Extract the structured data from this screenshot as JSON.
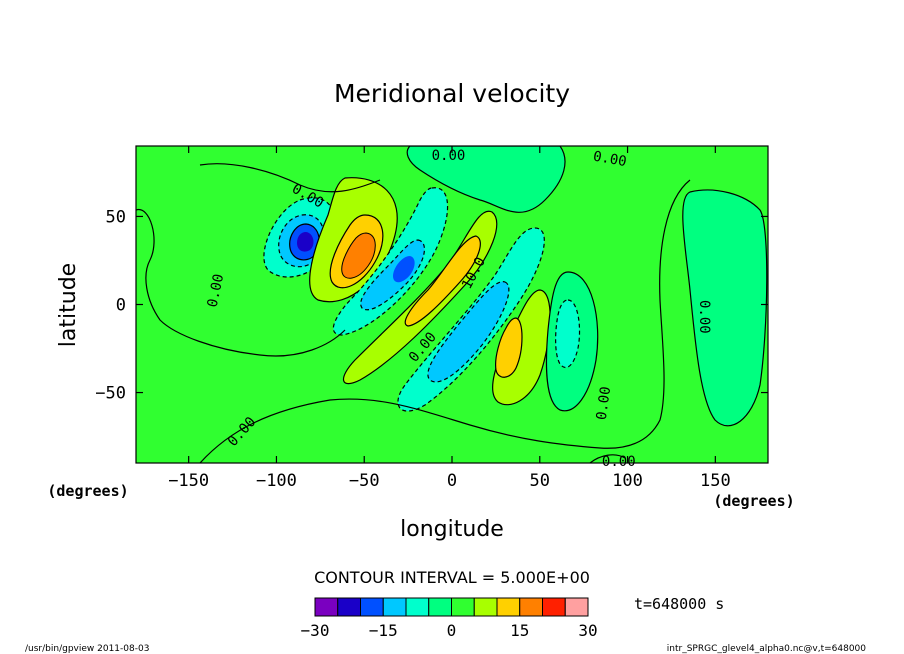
{
  "chart_data": {
    "type": "contour",
    "title": "Meridional velocity",
    "xlabel": "longitude",
    "ylabel": "latitude",
    "x_unit": "(degrees)",
    "y_unit": "(degrees)",
    "xlim": [
      -180,
      180
    ],
    "ylim": [
      -90,
      90
    ],
    "xticks": [
      -150,
      -100,
      -50,
      0,
      50,
      100,
      150
    ],
    "yticks": [
      -50,
      0,
      50
    ],
    "contour_interval_label": "CONTOUR INTERVAL = 5.000E+00",
    "time_label": "t=648000 s",
    "colorbar": {
      "levels": [
        -30,
        -25,
        -20,
        -15,
        -10,
        -5,
        0,
        5,
        10,
        15,
        20,
        25,
        30
      ],
      "tick_labels": [
        "−30",
        "−15",
        "0",
        "15",
        "30"
      ],
      "tick_values": [
        -30,
        -15,
        0,
        15,
        30
      ],
      "colors": [
        "#7a00c0",
        "#1a00c8",
        "#0050ff",
        "#00c8ff",
        "#00ffcc",
        "#00ff80",
        "#30ff30",
        "#a8ff00",
        "#ffd000",
        "#ff8000",
        "#ff2000",
        "#ffa0a0"
      ]
    },
    "contour_labels": [
      {
        "text": "0.00",
        "lon": -2,
        "lat": 85,
        "rot": 0
      },
      {
        "text": "0.00",
        "lon": 90,
        "lat": 83,
        "rot": 10
      },
      {
        "text": "0.00",
        "lon": -82,
        "lat": 62,
        "rot": 30
      },
      {
        "text": "0.00",
        "lon": -135,
        "lat": 8,
        "rot": -78
      },
      {
        "text": "10.0",
        "lon": 12,
        "lat": 18,
        "rot": -62
      },
      {
        "text": "0.00",
        "lon": -17,
        "lat": -24,
        "rot": -50
      },
      {
        "text": "0.00",
        "lon": 144,
        "lat": -7,
        "rot": 90
      },
      {
        "text": "0.00",
        "lon": 86,
        "lat": -56,
        "rot": -82
      },
      {
        "text": "0.00",
        "lon": -120,
        "lat": -72,
        "rot": -48
      },
      {
        "text": "0.00",
        "lon": 95,
        "lat": -89,
        "rot": 0
      }
    ],
    "background_level_color": "#30ff30"
  },
  "footer": {
    "left": "/usr/bin/gpview  2011-08-03",
    "right": "intr_SPRGC_glevel4_alpha0.nc@v,t=648000"
  }
}
